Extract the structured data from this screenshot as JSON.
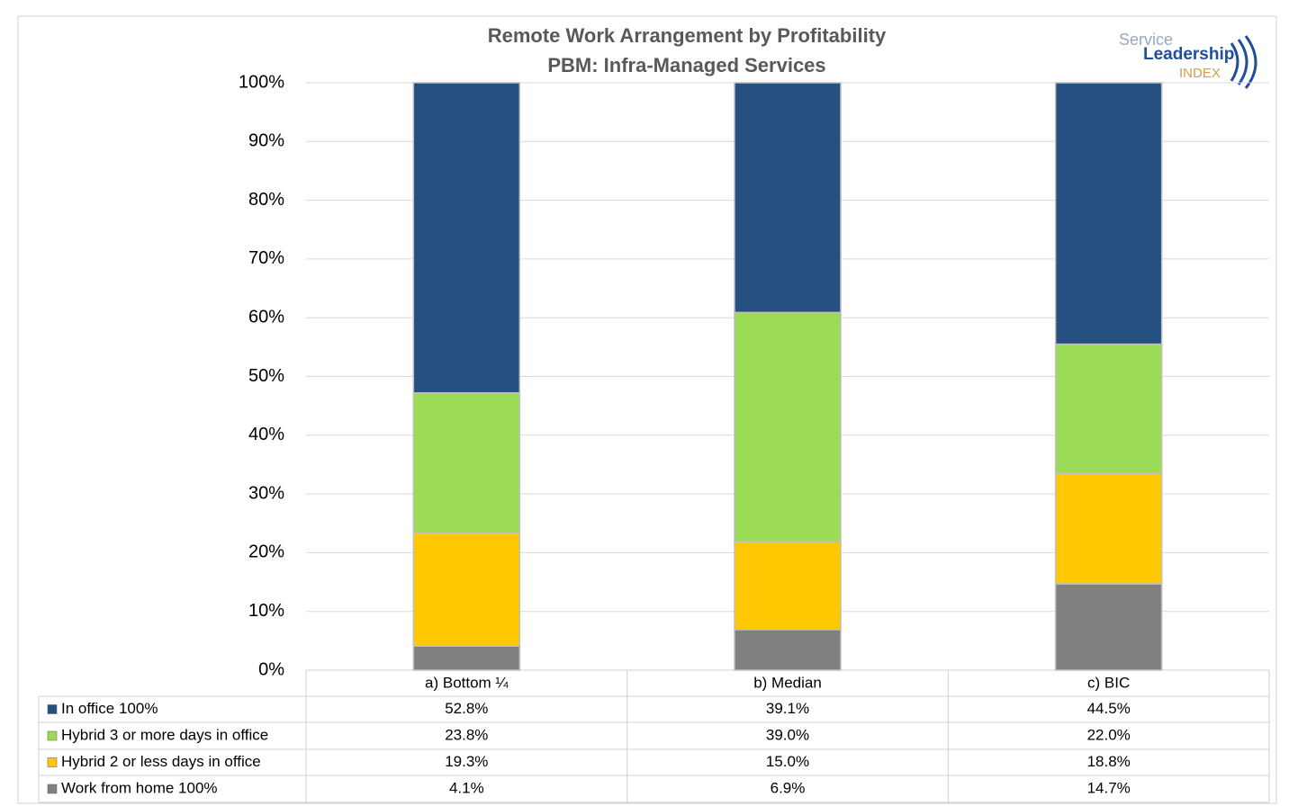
{
  "chart_data": {
    "type": "stacked_bar",
    "title": "Remote Work Arrangement by Profitability",
    "subtitle": "PBM: Infra-Managed Services",
    "logo": {
      "line1": "Service",
      "line2": "Leadership",
      "line3": "INDEX"
    },
    "categories": [
      "a) Bottom ¼",
      "b) Median",
      "c) BIC"
    ],
    "series": [
      {
        "name": "In office 100%",
        "color": "#264f82",
        "values": [
          52.8,
          39.1,
          44.5
        ],
        "value_labels": [
          "52.8%",
          "39.1%",
          "44.5%"
        ]
      },
      {
        "name": "Hybrid 3 or more days in office",
        "color": "#9bdb55",
        "values": [
          23.8,
          39.0,
          22.0
        ],
        "value_labels": [
          "23.8%",
          "39.0%",
          "22.0%"
        ]
      },
      {
        "name": "Hybrid 2 or less days in office",
        "color": "#ffc800",
        "values": [
          19.3,
          15.0,
          18.8
        ],
        "value_labels": [
          "19.3%",
          "15.0%",
          "18.8%"
        ]
      },
      {
        "name": "Work from home 100%",
        "color": "#808080",
        "values": [
          4.1,
          6.9,
          14.7
        ],
        "value_labels": [
          "4.1%",
          "6.9%",
          "14.7%"
        ]
      }
    ],
    "ylim": [
      0,
      100
    ],
    "yticks": [
      {
        "value": 0,
        "label": "0%"
      },
      {
        "value": 10,
        "label": "10%"
      },
      {
        "value": 20,
        "label": "20%"
      },
      {
        "value": 30,
        "label": "30%"
      },
      {
        "value": 40,
        "label": "40%"
      },
      {
        "value": 50,
        "label": "50%"
      },
      {
        "value": 60,
        "label": "60%"
      },
      {
        "value": 70,
        "label": "70%"
      },
      {
        "value": 80,
        "label": "80%"
      },
      {
        "value": 90,
        "label": "90%"
      },
      {
        "value": 100,
        "label": "100%"
      }
    ],
    "grid": true
  }
}
